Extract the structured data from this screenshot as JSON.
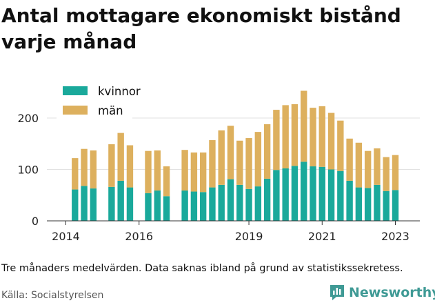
{
  "title": "Antal mottagare ekonomiskt bistånd varje månad",
  "note": "Tre månaders medelvärden. Data saknas ibland på grund av statistikssekretess.",
  "source": "Källa: Socialstyrelsen",
  "brand": {
    "name": "Newsworthy",
    "icon": "newsworthy-chat-chart-icon",
    "color": "#3f9a95"
  },
  "chart_data": {
    "type": "bar",
    "stacked": true,
    "x_ticks": [
      "2014",
      "2016",
      "2019",
      "2021",
      "2023"
    ],
    "x_tick_dates": [
      "2014-01",
      "2016-01",
      "2019-01",
      "2021-01",
      "2023-01"
    ],
    "y_ticks": [
      0,
      100,
      200
    ],
    "ylim": [
      0,
      260
    ],
    "grid": "horizontal",
    "legend_position": "top-left",
    "colors": {
      "kvinnor": "#1aa99b",
      "män": "#ddb05e"
    },
    "categories": [
      "2014-04",
      "2014-07",
      "2014-10",
      "2015-04",
      "2015-07",
      "2015-10",
      "2016-04",
      "2016-07",
      "2016-10",
      "2017-04",
      "2017-07",
      "2017-10",
      "2018-01",
      "2018-04",
      "2018-07",
      "2018-10",
      "2019-01",
      "2019-04",
      "2019-07",
      "2019-10",
      "2020-01",
      "2020-04",
      "2020-07",
      "2020-10",
      "2021-01",
      "2021-04",
      "2021-07",
      "2021-10",
      "2022-01",
      "2022-04",
      "2022-07",
      "2022-10",
      "2023-01",
      "2023-04"
    ],
    "series": [
      {
        "name": "kvinnor",
        "values": [
          61,
          68,
          63,
          66,
          78,
          65,
          54,
          59,
          48,
          59,
          57,
          56,
          65,
          70,
          81,
          70,
          62,
          67,
          82,
          99,
          102,
          107,
          115,
          106,
          105,
          100,
          97,
          78,
          65,
          64,
          70,
          58,
          60,
          0
        ]
      },
      {
        "name": "män",
        "values": [
          61,
          72,
          74,
          83,
          93,
          82,
          82,
          78,
          58,
          79,
          76,
          77,
          92,
          106,
          104,
          86,
          99,
          106,
          106,
          117,
          123,
          120,
          138,
          114,
          118,
          110,
          98,
          82,
          87,
          72,
          71,
          66,
          68,
          0
        ]
      }
    ]
  }
}
